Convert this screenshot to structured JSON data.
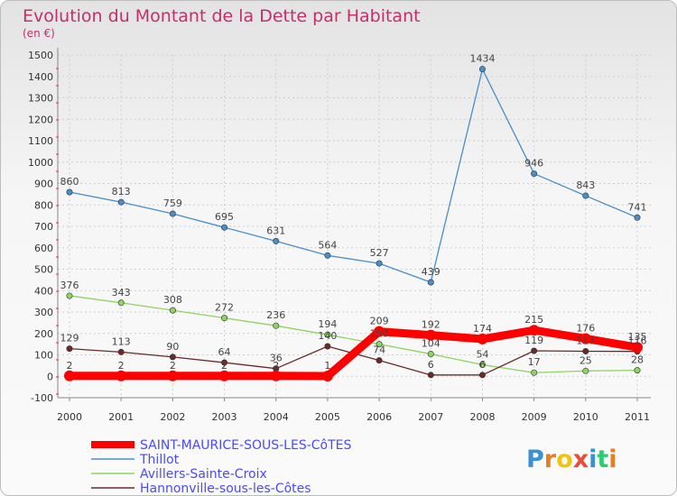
{
  "chart_data": {
    "type": "line",
    "title": "Evolution du Montant de la Dette par Habitant",
    "subtitle": "(en €)",
    "x": [
      "2000",
      "2001",
      "2002",
      "2003",
      "2004",
      "2005",
      "2006",
      "2007",
      "2008",
      "2009",
      "2010",
      "2011"
    ],
    "ylim": [
      -100,
      1500
    ],
    "yticks": [
      -100,
      0,
      100,
      200,
      300,
      400,
      500,
      600,
      700,
      800,
      900,
      1000,
      1100,
      1200,
      1300,
      1400,
      1500
    ],
    "grid": true,
    "legend_position": "bottom-left",
    "series": [
      {
        "name": "Thillot",
        "color": "#4a8ec9",
        "values": [
          860,
          813,
          759,
          695,
          631,
          564,
          527,
          439,
          1434,
          946,
          843,
          741
        ]
      },
      {
        "name": "Avillers-Sainte-Croix",
        "color": "#8ed462",
        "values": [
          376,
          343,
          308,
          272,
          236,
          194,
          150,
          104,
          54,
          17,
          25,
          28
        ]
      },
      {
        "name": "Hannonville-sous-les-Côtes",
        "color": "#6b2a2a",
        "values": [
          129,
          113,
          90,
          64,
          36,
          140,
          74,
          6,
          6,
          119,
          117,
          116
        ]
      },
      {
        "name": "SAINT-MAURICE-SOUS-LES-CôTES",
        "color": "#ff0000",
        "values": [
          2,
          2,
          2,
          2,
          2,
          1,
          209,
          192,
          174,
          215,
          176,
          135
        ]
      }
    ]
  },
  "legend": [
    {
      "name": "SAINT-MAURICE-SOUS-LES-CôTES",
      "color": "#ff0000",
      "thick": true
    },
    {
      "name": "Thillot",
      "color": "#4a8ec9",
      "thick": false
    },
    {
      "name": "Avillers-Sainte-Croix",
      "color": "#8ed462",
      "thick": false
    },
    {
      "name": "Hannonville-sous-les-Côtes",
      "color": "#6b2a2a",
      "thick": false
    }
  ],
  "logo": {
    "letters": [
      "P",
      "r",
      "o",
      "x",
      "i",
      "t",
      "i"
    ],
    "colors": [
      "#3a8fd6",
      "#e67e22",
      "#f1c40f",
      "#e74c3c",
      "#3a8fd6",
      "#2ecc71",
      "#e67e22"
    ]
  }
}
